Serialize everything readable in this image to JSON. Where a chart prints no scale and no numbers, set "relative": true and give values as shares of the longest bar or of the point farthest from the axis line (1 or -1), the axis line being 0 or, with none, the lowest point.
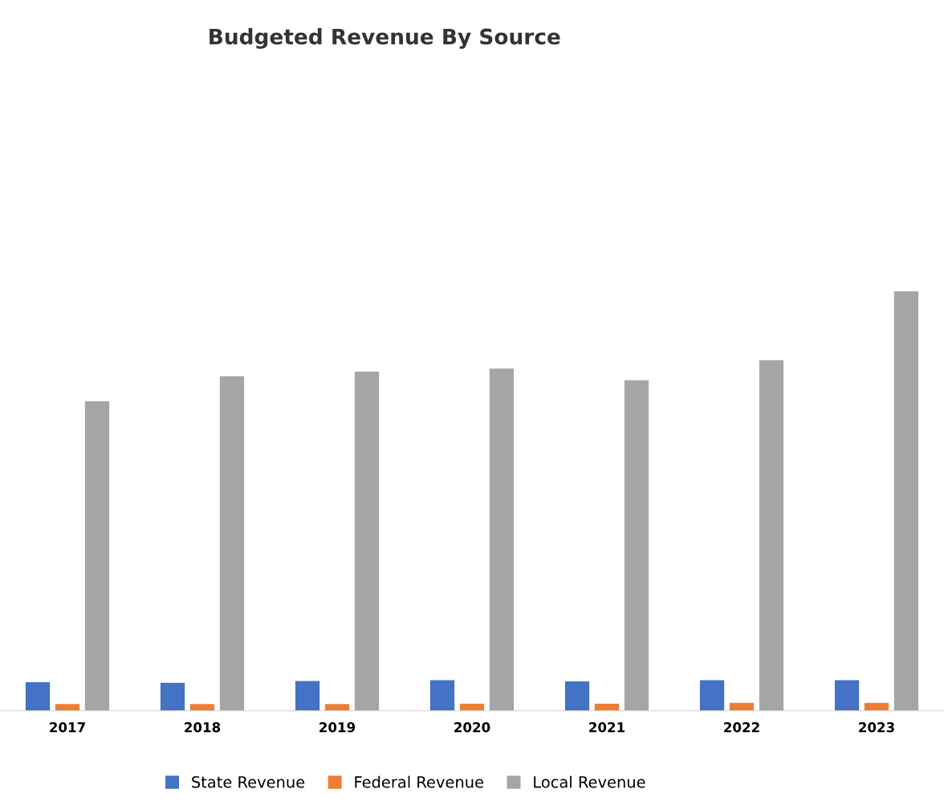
{
  "chart_data": {
    "type": "bar",
    "title": "Budgeted Revenue By Source",
    "relative": true,
    "categories": [
      "2017",
      "2018",
      "2019",
      "2020",
      "2021",
      "2022",
      "2023"
    ],
    "series": [
      {
        "name": "State Revenue",
        "color": "#4472c4",
        "values": [
          0.068,
          0.067,
          0.071,
          0.073,
          0.07,
          0.073,
          0.073
        ]
      },
      {
        "name": "Federal Revenue",
        "color": "#ed7d31",
        "values": [
          0.016,
          0.016,
          0.016,
          0.017,
          0.017,
          0.019,
          0.019
        ]
      },
      {
        "name": "Local Revenue",
        "color": "#a5a5a5",
        "values": [
          0.738,
          0.798,
          0.809,
          0.816,
          0.788,
          0.836,
          1
        ]
      }
    ],
    "legend": "bottom"
  }
}
